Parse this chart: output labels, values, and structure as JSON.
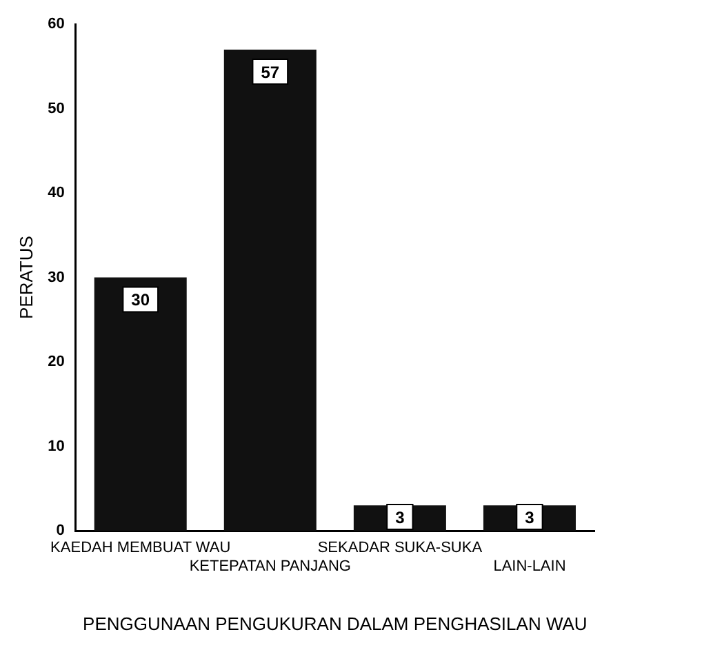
{
  "chart_data": {
    "type": "bar",
    "xlabel": "PENGGUNAAN PENGUKURAN DALAM PENGHASILAN WAU",
    "ylabel": "PERATUS",
    "categories": [
      "KAEDAH MEMBUAT WAU",
      "KETEPATAN PANJANG",
      "SEKADAR SUKA-SUKA",
      "LAIN-LAIN"
    ],
    "values": [
      30,
      57,
      3,
      3
    ],
    "color": "#111111",
    "ylim": [
      0,
      60
    ],
    "yticks": [
      0,
      10,
      20,
      30,
      40,
      50,
      60
    ],
    "grid": false,
    "legend": false,
    "data_labels": true
  }
}
